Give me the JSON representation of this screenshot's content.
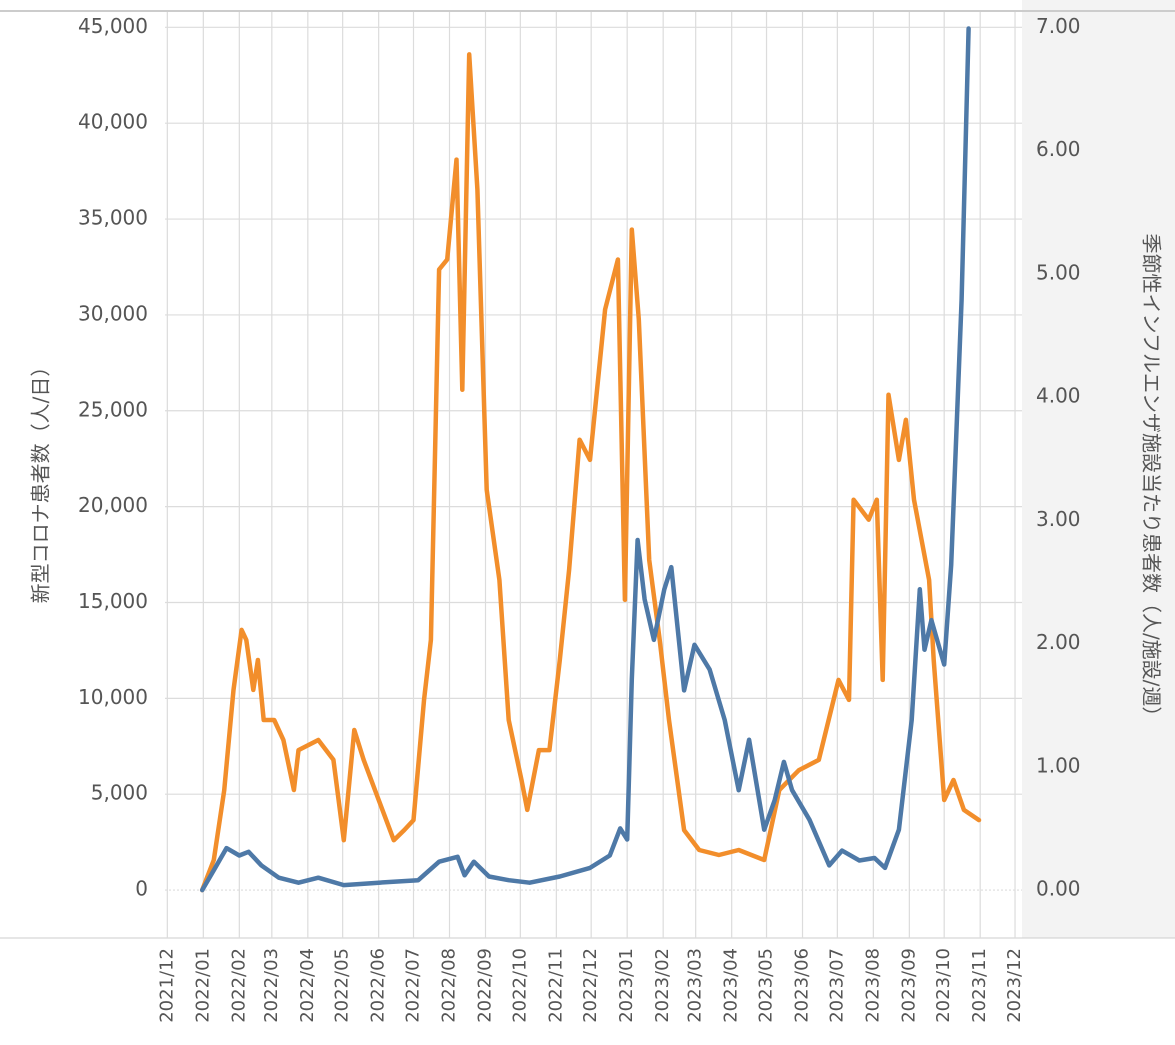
{
  "chart_data": {
    "type": "line",
    "ylabel": "新型コロナ患者数（人/日）",
    "y2label": "季節性インフルエンザ施設当たり患者数（人/施設/週）",
    "xlim": [
      "2021-11-29",
      "2023-12-07"
    ],
    "xticks": [
      {
        "value": "2021-12-01",
        "label": "2021/12"
      },
      {
        "value": "2022-01-01",
        "label": "2022/01"
      },
      {
        "value": "2022-02-01",
        "label": "2022/02"
      },
      {
        "value": "2022-03-01",
        "label": "2022/03"
      },
      {
        "value": "2022-04-01",
        "label": "2022/04"
      },
      {
        "value": "2022-05-01",
        "label": "2022/05"
      },
      {
        "value": "2022-06-01",
        "label": "2022/06"
      },
      {
        "value": "2022-07-01",
        "label": "2022/07"
      },
      {
        "value": "2022-08-01",
        "label": "2022/08"
      },
      {
        "value": "2022-09-01",
        "label": "2022/09"
      },
      {
        "value": "2022-10-01",
        "label": "2022/10"
      },
      {
        "value": "2022-11-01",
        "label": "2022/11"
      },
      {
        "value": "2022-12-01",
        "label": "2022/12"
      },
      {
        "value": "2023-01-01",
        "label": "2023/01"
      },
      {
        "value": "2023-02-01",
        "label": "2023/02"
      },
      {
        "value": "2023-03-01",
        "label": "2023/03"
      },
      {
        "value": "2023-04-01",
        "label": "2023/04"
      },
      {
        "value": "2023-05-01",
        "label": "2023/05"
      },
      {
        "value": "2023-06-01",
        "label": "2023/06"
      },
      {
        "value": "2023-07-01",
        "label": "2023/07"
      },
      {
        "value": "2023-08-01",
        "label": "2023/08"
      },
      {
        "value": "2023-09-01",
        "label": "2023/09"
      },
      {
        "value": "2023-10-01",
        "label": "2023/10"
      },
      {
        "value": "2023-11-01",
        "label": "2023/11"
      },
      {
        "value": "2023-12-01",
        "label": "2023/12"
      }
    ],
    "ylim": [
      -2500,
      45800
    ],
    "yticks": [
      0,
      {
        "value": 5000,
        "label": "5,000"
      },
      {
        "value": 10000,
        "label": "10,000"
      },
      {
        "value": 15000,
        "label": "15,000"
      },
      {
        "value": 20000,
        "label": "20,000"
      },
      {
        "value": 25000,
        "label": "25,000"
      },
      {
        "value": 30000,
        "label": "30,000"
      },
      {
        "value": 35000,
        "label": "35,000"
      },
      {
        "value": 40000,
        "label": "40,000"
      },
      {
        "value": 45000,
        "label": "45,000"
      }
    ],
    "y2lim": [
      -0.389,
      7.124
    ],
    "y2ticks": [
      {
        "value": 0,
        "label": "0.00"
      },
      {
        "value": 1,
        "label": "1.00"
      },
      {
        "value": 2,
        "label": "2.00"
      },
      {
        "value": 3,
        "label": "3.00"
      },
      {
        "value": 4,
        "label": "4.00"
      },
      {
        "value": 5,
        "label": "5.00"
      },
      {
        "value": 6,
        "label": "6.00"
      },
      {
        "value": 7,
        "label": "7.00"
      }
    ],
    "grid": true,
    "series": [
      {
        "color": "#f28e2b",
        "x": [
          "2021-12-31",
          "2022-01-10",
          "2022-01-19",
          "2022-01-27",
          "2022-02-03",
          "2022-02-07",
          "2022-02-13",
          "2022-02-17",
          "2022-02-22",
          "2022-03-03",
          "2022-03-11",
          "2022-03-20",
          "2022-03-24",
          "2022-04-10",
          "2022-04-23",
          "2022-05-02",
          "2022-05-11",
          "2022-05-19",
          "2022-06-01",
          "2022-06-14",
          "2022-06-23",
          "2022-07-01",
          "2022-07-10",
          "2022-07-16",
          "2022-07-23",
          "2022-07-30",
          "2022-08-07",
          "2022-08-12",
          "2022-08-18",
          "2022-08-25",
          "2022-09-02",
          "2022-09-13",
          "2022-09-21",
          "2022-10-02",
          "2022-10-07",
          "2022-10-17",
          "2022-10-26",
          "2022-11-04",
          "2022-11-12",
          "2022-11-21",
          "2022-11-30",
          "2022-12-13",
          "2022-12-24",
          "2022-12-30",
          "2023-01-05",
          "2023-01-11",
          "2023-01-20",
          "2023-01-29",
          "2023-02-06",
          "2023-02-19",
          "2023-03-04",
          "2023-03-21",
          "2023-04-07",
          "2023-04-29",
          "2023-05-12",
          "2023-05-29",
          "2023-06-15",
          "2023-07-02",
          "2023-07-11",
          "2023-07-15",
          "2023-07-28",
          "2023-08-04",
          "2023-08-09",
          "2023-08-14",
          "2023-08-23",
          "2023-08-29",
          "2023-09-05",
          "2023-09-18",
          "2023-09-22",
          "2023-10-01",
          "2023-10-09",
          "2023-10-18",
          "2023-10-31"
        ],
        "values": [
          0,
          1570,
          5200,
          10440,
          13570,
          13050,
          10440,
          12000,
          8870,
          8870,
          7830,
          5220,
          7300,
          7830,
          6800,
          2600,
          8350,
          6800,
          4700,
          2600,
          3130,
          3650,
          9900,
          13050,
          32370,
          32890,
          38100,
          26100,
          43590,
          36540,
          20880,
          16180,
          8870,
          5740,
          4180,
          7300,
          7300,
          12000,
          16700,
          23490,
          22440,
          30280,
          32890,
          15140,
          34450,
          29760,
          17220,
          13050,
          8870,
          3130,
          2090,
          1830,
          2090,
          1570,
          5220,
          6260,
          6790,
          10960,
          9920,
          20360,
          19320,
          20360,
          10960,
          25840,
          22440,
          24530,
          20360,
          16180,
          12000,
          4700,
          5740,
          4180,
          3650
        ]
      },
      {
        "color": "#4e79a7",
        "axis": "y2",
        "x": [
          "2021-12-31",
          "2022-01-10",
          "2022-01-21",
          "2022-02-01",
          "2022-02-09",
          "2022-02-20",
          "2022-03-07",
          "2022-03-24",
          "2022-04-10",
          "2022-05-02",
          "2022-06-01",
          "2022-07-05",
          "2022-07-23",
          "2022-08-08",
          "2022-08-14",
          "2022-08-22",
          "2022-09-04",
          "2022-09-21",
          "2022-10-09",
          "2022-11-04",
          "2022-11-30",
          "2022-12-17",
          "2022-12-26",
          "2023-01-01",
          "2023-01-05",
          "2023-01-10",
          "2023-01-16",
          "2023-01-24",
          "2023-02-02",
          "2023-02-08",
          "2023-02-19",
          "2023-02-28",
          "2023-03-13",
          "2023-03-26",
          "2023-04-07",
          "2023-04-16",
          "2023-04-29",
          "2023-05-08",
          "2023-05-16",
          "2023-05-23",
          "2023-06-07",
          "2023-06-24",
          "2023-07-05",
          "2023-07-20",
          "2023-08-02",
          "2023-08-11",
          "2023-08-23",
          "2023-09-03",
          "2023-09-10",
          "2023-09-14",
          "2023-09-20",
          "2023-10-01",
          "2023-10-07",
          "2023-10-16",
          "2023-10-22"
        ],
        "values": [
          0,
          0.16,
          0.34,
          0.28,
          0.31,
          0.2,
          0.1,
          0.06,
          0.1,
          0.04,
          0.06,
          0.08,
          0.23,
          0.27,
          0.12,
          0.23,
          0.11,
          0.08,
          0.06,
          0.11,
          0.18,
          0.28,
          0.5,
          0.41,
          1.71,
          2.84,
          2.36,
          2.03,
          2.44,
          2.62,
          1.62,
          1.99,
          1.79,
          1.38,
          0.81,
          1.22,
          0.49,
          0.73,
          1.04,
          0.81,
          0.57,
          0.2,
          0.32,
          0.24,
          0.26,
          0.18,
          0.49,
          1.38,
          2.44,
          1.95,
          2.19,
          1.83,
          2.64,
          4.79,
          6.99
        ]
      }
    ]
  }
}
